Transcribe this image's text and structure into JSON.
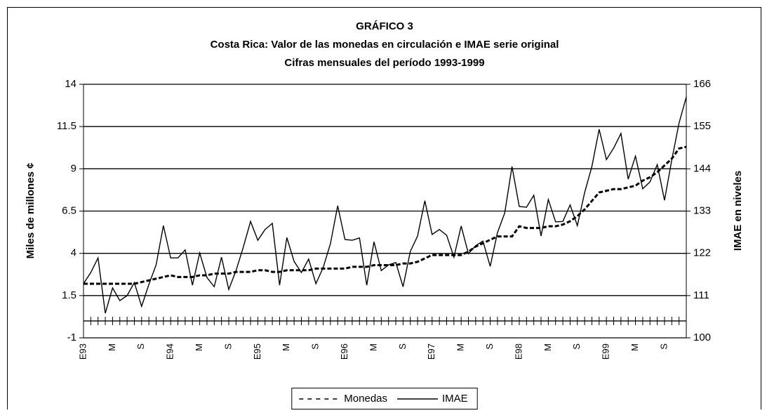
{
  "chart_data": {
    "type": "line",
    "title": "GRÁFICO 3",
    "subtitle": "Costa Rica: Valor de las monedas en circulación e IMAE serie original",
    "subtitle2": "Cifras mensuales del período 1993-1999",
    "y_label": "Miles de millones ¢",
    "y2_label": "IMAE en niveles",
    "categories": [
      "E93",
      null,
      null,
      null,
      "M",
      null,
      null,
      null,
      "S",
      null,
      null,
      null,
      "E94",
      null,
      null,
      null,
      "M",
      null,
      null,
      null,
      "S",
      null,
      null,
      null,
      "E95",
      null,
      null,
      null,
      "M",
      null,
      null,
      null,
      "S",
      null,
      null,
      null,
      "E96",
      null,
      null,
      null,
      "M",
      null,
      null,
      null,
      "S",
      null,
      null,
      null,
      "E97",
      null,
      null,
      null,
      "M",
      null,
      null,
      null,
      "S",
      null,
      null,
      null,
      "E98",
      null,
      null,
      null,
      "M",
      null,
      null,
      null,
      "S",
      null,
      null,
      null,
      "E99",
      null,
      null,
      null,
      "M",
      null,
      null,
      null,
      "S",
      null,
      null,
      null
    ],
    "ylim": [
      -1,
      14
    ],
    "yticks": [
      -1,
      1.5,
      4,
      6.5,
      9,
      11.5,
      14
    ],
    "y2lim": [
      100,
      166
    ],
    "y2ticks": [
      100,
      111,
      122,
      133,
      144,
      155,
      166
    ],
    "grid": true,
    "legend": "bottom",
    "series": [
      {
        "name": "Monedas",
        "color": "#000000",
        "dash": "dashed",
        "values": [
          2.2,
          2.2,
          2.2,
          2.2,
          2.2,
          2.2,
          2.2,
          2.2,
          2.3,
          2.4,
          2.5,
          2.6,
          2.7,
          2.6,
          2.6,
          2.6,
          2.7,
          2.7,
          2.8,
          2.8,
          2.8,
          2.9,
          2.9,
          2.9,
          3.0,
          3.0,
          2.9,
          2.9,
          3.0,
          3.0,
          3.0,
          3.0,
          3.1,
          3.1,
          3.1,
          3.1,
          3.1,
          3.2,
          3.2,
          3.2,
          3.3,
          3.3,
          3.3,
          3.3,
          3.4,
          3.4,
          3.5,
          3.7,
          3.9,
          3.9,
          3.9,
          3.9,
          3.9,
          4.1,
          4.4,
          4.6,
          4.8,
          5.0,
          5.0,
          5.0,
          5.6,
          5.5,
          5.5,
          5.5,
          5.6,
          5.6,
          5.7,
          5.9,
          6.2,
          6.6,
          7.1,
          7.6,
          7.7,
          7.8,
          7.8,
          7.9,
          8.0,
          8.3,
          8.5,
          8.8,
          9.2,
          9.6,
          10.2,
          10.3
        ]
      },
      {
        "name": "IMAE",
        "color": "#000000",
        "dash": "solid",
        "axis": "y2",
        "values": [
          114.1,
          117,
          120.8,
          106.4,
          113,
          109.7,
          111,
          114.4,
          108.2,
          113.9,
          119,
          129.2,
          120.8,
          120.8,
          122.9,
          113.7,
          122.1,
          115.7,
          113.3,
          121,
          112.6,
          117.5,
          123.6,
          130.3,
          125.4,
          128.2,
          129.8,
          113.7,
          126.1,
          119.9,
          117,
          120.5,
          114.1,
          118.3,
          124.5,
          134.4,
          125.6,
          125.4,
          126,
          113.7,
          125,
          117.5,
          119,
          119.6,
          113.3,
          122.5,
          126.5,
          135.7,
          126.9,
          128.2,
          126.7,
          121,
          129.1,
          121.9,
          124,
          125.2,
          118.6,
          127.4,
          132.5,
          144.6,
          134.2,
          134,
          137.1,
          126.5,
          136,
          130.2,
          130.3,
          134.6,
          129.2,
          137.8,
          144.6,
          154.3,
          146.4,
          149.4,
          153.2,
          141.3,
          147.3,
          138.8,
          140.6,
          145.1,
          135.8,
          146.3,
          155.9,
          162.7
        ]
      }
    ]
  }
}
